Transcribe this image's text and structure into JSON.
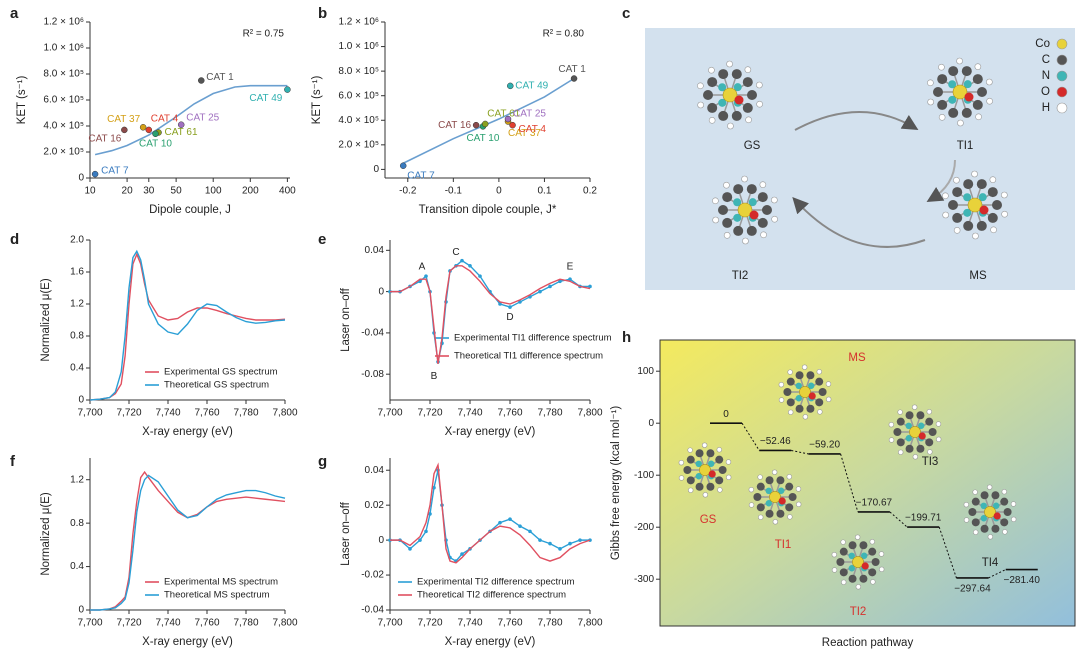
{
  "chart_data": [
    {
      "panel": "a",
      "type": "scatter",
      "xlabel": "Dipole couple, J",
      "ylabel": "KET (s⁻¹)",
      "annotation": "R² = 0.75",
      "xscale": "log",
      "xlim": [
        10,
        420
      ],
      "xticks": [
        10,
        20,
        30,
        50,
        100,
        200,
        400
      ],
      "ylim": [
        0,
        1200000
      ],
      "yticks": [
        0,
        {
          "value": 200000,
          "label": "2.0 × 10⁵"
        },
        {
          "value": 400000,
          "label": "4.0 × 10⁵"
        },
        {
          "value": 600000,
          "label": "6.0 × 10⁵"
        },
        {
          "value": 800000,
          "label": "8.0 × 10⁵"
        },
        {
          "value": 1000000,
          "label": "1.0 × 10⁶"
        },
        {
          "value": 1200000,
          "label": "1.2 × 10⁶"
        }
      ],
      "fit": {
        "color": "#6a9fd0",
        "x": [
          11,
          15,
          20,
          30,
          50,
          70,
          100,
          150,
          200,
          300,
          400
        ],
        "y": [
          180000,
          210000,
          250000,
          330000,
          470000,
          570000,
          650000,
          700000,
          710000,
          710000,
          710000
        ]
      },
      "points": [
        {
          "label": "CAT 7",
          "x": 11,
          "y": 30000,
          "color": "#3a7bbf"
        },
        {
          "label": "CAT 16",
          "x": 19,
          "y": 370000,
          "color": "#8b4a4a"
        },
        {
          "label": "CAT 37",
          "x": 27,
          "y": 390000,
          "color": "#d4a017"
        },
        {
          "label": "CAT 4",
          "x": 30,
          "y": 370000,
          "color": "#e04030"
        },
        {
          "label": "CAT 61",
          "x": 36,
          "y": 350000,
          "color": "#8aa020"
        },
        {
          "label": "CAT 10",
          "x": 34,
          "y": 340000,
          "color": "#2aa070"
        },
        {
          "label": "CAT 25",
          "x": 55,
          "y": 410000,
          "color": "#a070c0"
        },
        {
          "label": "CAT 1",
          "x": 80,
          "y": 750000,
          "color": "#555555"
        },
        {
          "label": "CAT 49",
          "x": 400,
          "y": 680000,
          "color": "#30b0b0"
        }
      ]
    },
    {
      "panel": "b",
      "type": "scatter",
      "xlabel": "Transition dipole couple, J*",
      "ylabel": "KET (s⁻¹)",
      "annotation": "R² = 0.80",
      "xlim": [
        -0.25,
        0.2
      ],
      "xticks": [
        -0.2,
        -0.1,
        0,
        0.1,
        0.2
      ],
      "ylim": [
        -70000,
        1200000
      ],
      "yticks": [
        0,
        {
          "value": 200000,
          "label": "2.0 × 10⁵"
        },
        {
          "value": 400000,
          "label": "4.0 × 10⁵"
        },
        {
          "value": 600000,
          "label": "6.0 × 10⁵"
        },
        {
          "value": 800000,
          "label": "8.0 × 10⁵"
        },
        {
          "value": 1000000,
          "label": "1.0 × 10⁶"
        },
        {
          "value": 1200000,
          "label": "1.2 × 10⁶"
        }
      ],
      "fit": {
        "color": "#6a9fd0",
        "x": [
          -0.21,
          -0.1,
          0,
          0.1,
          0.165
        ],
        "y": [
          50000,
          250000,
          410000,
          590000,
          740000
        ]
      },
      "points": [
        {
          "label": "CAT 7",
          "x": -0.21,
          "y": 30000,
          "color": "#3a7bbf"
        },
        {
          "label": "CAT 16",
          "x": -0.05,
          "y": 360000,
          "color": "#8b4a4a"
        },
        {
          "label": "CAT 10",
          "x": -0.035,
          "y": 350000,
          "color": "#2aa070"
        },
        {
          "label": "CAT 61",
          "x": -0.03,
          "y": 370000,
          "color": "#8aa020"
        },
        {
          "label": "CAT 37",
          "x": 0.02,
          "y": 390000,
          "color": "#d4a017"
        },
        {
          "label": "CAT 25",
          "x": 0.02,
          "y": 410000,
          "color": "#a070c0"
        },
        {
          "label": "CAT 4",
          "x": 0.03,
          "y": 360000,
          "color": "#e04030"
        },
        {
          "label": "CAT 49",
          "x": 0.025,
          "y": 680000,
          "color": "#30b0b0"
        },
        {
          "label": "CAT 1",
          "x": 0.165,
          "y": 740000,
          "color": "#555555"
        }
      ]
    },
    {
      "panel": "d",
      "type": "line",
      "xlabel": "X-ray energy (eV)",
      "ylabel": "Normalized μ(E)",
      "legend": "lower right",
      "xlim": [
        7700,
        7800
      ],
      "xticks": [
        {
          "value": 7700,
          "label": "7,700"
        },
        {
          "value": 7720,
          "label": "7,720"
        },
        {
          "value": 7740,
          "label": "7,740"
        },
        {
          "value": 7760,
          "label": "7,760"
        },
        {
          "value": 7780,
          "label": "7,780"
        },
        {
          "value": 7800,
          "label": "7,800"
        }
      ],
      "ylim": [
        0,
        2
      ],
      "yticks": [
        0,
        0.4,
        0.8,
        1.2,
        1.6,
        {
          "value": 2,
          "label": "2.0"
        }
      ],
      "x": [
        7700,
        7705,
        7710,
        7713,
        7716,
        7718,
        7720,
        7722,
        7724,
        7726,
        7728,
        7730,
        7735,
        7740,
        7745,
        7750,
        7755,
        7760,
        7765,
        7770,
        7775,
        7780,
        7785,
        7790,
        7795,
        7800
      ],
      "series": [
        {
          "name": "Experimental GS spectrum",
          "color": "#e05060",
          "values": [
            0,
            0.01,
            0.03,
            0.08,
            0.2,
            0.55,
            1.2,
            1.7,
            1.82,
            1.7,
            1.45,
            1.25,
            1.05,
            1.0,
            1.02,
            1.1,
            1.15,
            1.15,
            1.12,
            1.08,
            1.05,
            1.02,
            1.0,
            1.0,
            1.0,
            1.01
          ]
        },
        {
          "name": "Theoretical GS spectrum",
          "color": "#2a9fd6",
          "values": [
            0,
            0.01,
            0.03,
            0.1,
            0.35,
            0.8,
            1.4,
            1.78,
            1.86,
            1.75,
            1.5,
            1.2,
            0.95,
            0.85,
            0.82,
            0.95,
            1.12,
            1.2,
            1.18,
            1.1,
            1.03,
            0.98,
            0.96,
            0.97,
            0.99,
            1.0
          ]
        }
      ]
    },
    {
      "panel": "e",
      "type": "line",
      "xlabel": "X-ray energy (eV)",
      "ylabel": "Laser on–off",
      "legend": "center right",
      "xlim": [
        7700,
        7800
      ],
      "xticks": [
        {
          "value": 7700,
          "label": "7,700"
        },
        {
          "value": 7720,
          "label": "7,720"
        },
        {
          "value": 7740,
          "label": "7,740"
        },
        {
          "value": 7760,
          "label": "7,760"
        },
        {
          "value": 7780,
          "label": "7,780"
        },
        {
          "value": 7800,
          "label": "7,800"
        }
      ],
      "ylim": [
        -0.105,
        0.05
      ],
      "yticks": [
        -0.08,
        -0.04,
        0,
        0.04
      ],
      "x": [
        7700,
        7705,
        7710,
        7715,
        7718,
        7720,
        7722,
        7724,
        7726,
        7728,
        7730,
        7733,
        7736,
        7740,
        7745,
        7750,
        7755,
        7760,
        7765,
        7770,
        7775,
        7780,
        7785,
        7790,
        7795,
        7800
      ],
      "series": [
        {
          "name": "Experimental TI1 difference spectrum",
          "color": "#2a9fd6",
          "marker": true,
          "values": [
            0,
            0,
            0.005,
            0.01,
            0.015,
            0.0,
            -0.04,
            -0.068,
            -0.05,
            -0.01,
            0.02,
            0.025,
            0.03,
            0.025,
            0.015,
            0.0,
            -0.012,
            -0.015,
            -0.01,
            -0.005,
            0.0,
            0.005,
            0.01,
            0.012,
            0.005,
            0.005
          ]
        },
        {
          "name": "Theoretical TI1 difference spectrum",
          "color": "#e05060",
          "values": [
            0,
            0,
            0.005,
            0.012,
            0.012,
            0,
            -0.035,
            -0.07,
            -0.045,
            -0.005,
            0.02,
            0.025,
            0.025,
            0.02,
            0.01,
            -0.002,
            -0.01,
            -0.012,
            -0.008,
            -0.003,
            0.003,
            0.008,
            0.012,
            0.01,
            0.005,
            0.003
          ]
        }
      ],
      "annotations": [
        {
          "text": "A",
          "x": 7716,
          "y": 0.024
        },
        {
          "text": "B",
          "x": 7722,
          "y": -0.082
        },
        {
          "text": "C",
          "x": 7733,
          "y": 0.038
        },
        {
          "text": "D",
          "x": 7760,
          "y": -0.025
        },
        {
          "text": "E",
          "x": 7790,
          "y": 0.024
        }
      ]
    },
    {
      "panel": "f",
      "type": "line",
      "xlabel": "X-ray energy (eV)",
      "ylabel": "Normalized μ(E)",
      "legend": "lower right",
      "xlim": [
        7700,
        7800
      ],
      "xticks": [
        {
          "value": 7700,
          "label": "7,700"
        },
        {
          "value": 7720,
          "label": "7,720"
        },
        {
          "value": 7740,
          "label": "7,740"
        },
        {
          "value": 7760,
          "label": "7,760"
        },
        {
          "value": 7780,
          "label": "7,780"
        },
        {
          "value": 7800,
          "label": "7,800"
        }
      ],
      "ylim": [
        0,
        1.4
      ],
      "yticks": [
        0,
        0.4,
        0.8,
        1.2
      ],
      "x": [
        7700,
        7705,
        7710,
        7713,
        7716,
        7718,
        7720,
        7722,
        7724,
        7726,
        7728,
        7730,
        7735,
        7740,
        7745,
        7750,
        7755,
        7760,
        7765,
        7770,
        7775,
        7780,
        7785,
        7790,
        7795,
        7800
      ],
      "series": [
        {
          "name": "Experimental MS spectrum",
          "color": "#e05060",
          "values": [
            0,
            0,
            0.01,
            0.03,
            0.08,
            0.12,
            0.3,
            0.7,
            1.0,
            1.22,
            1.27,
            1.22,
            1.1,
            1.0,
            0.9,
            0.85,
            0.88,
            0.95,
            1.0,
            1.02,
            1.03,
            1.04,
            1.03,
            1.02,
            1.01,
            1.0
          ]
        },
        {
          "name": "Theoretical MS spectrum",
          "color": "#2a9fd6",
          "values": [
            0,
            0,
            0.01,
            0.02,
            0.06,
            0.1,
            0.25,
            0.55,
            0.9,
            1.1,
            1.2,
            1.24,
            1.18,
            1.05,
            0.92,
            0.85,
            0.87,
            0.95,
            1.02,
            1.06,
            1.08,
            1.1,
            1.1,
            1.08,
            1.05,
            1.03
          ]
        }
      ]
    },
    {
      "panel": "g",
      "type": "line",
      "xlabel": "X-ray energy (eV)",
      "ylabel": "Laser on–off",
      "legend": "lower center",
      "xlim": [
        7700,
        7800
      ],
      "xticks": [
        {
          "value": 7700,
          "label": "7,700"
        },
        {
          "value": 7720,
          "label": "7,720"
        },
        {
          "value": 7740,
          "label": "7,740"
        },
        {
          "value": 7760,
          "label": "7,760"
        },
        {
          "value": 7780,
          "label": "7,780"
        },
        {
          "value": 7800,
          "label": "7,800"
        }
      ],
      "ylim": [
        -0.04,
        0.047
      ],
      "yticks": [
        -0.04,
        -0.02,
        0,
        0.02,
        0.04
      ],
      "x": [
        7700,
        7705,
        7710,
        7715,
        7718,
        7720,
        7722,
        7724,
        7726,
        7728,
        7730,
        7733,
        7736,
        7740,
        7745,
        7750,
        7755,
        7760,
        7765,
        7770,
        7775,
        7780,
        7785,
        7790,
        7795,
        7800
      ],
      "series": [
        {
          "name": "Experimental TI2 difference spectrum",
          "color": "#2a9fd6",
          "marker": true,
          "values": [
            0,
            0,
            -0.005,
            0.0,
            0.005,
            0.015,
            0.03,
            0.04,
            0.02,
            0.0,
            -0.01,
            -0.012,
            -0.008,
            -0.005,
            0.0,
            0.005,
            0.01,
            0.012,
            0.008,
            0.005,
            0.0,
            -0.002,
            -0.005,
            -0.002,
            0.0,
            0.0
          ]
        },
        {
          "name": "Theoretical TI2 difference spectrum",
          "color": "#e05060",
          "values": [
            0,
            0,
            -0.003,
            0.002,
            0.01,
            0.02,
            0.038,
            0.043,
            0.02,
            -0.005,
            -0.012,
            -0.013,
            -0.01,
            -0.005,
            0.0,
            0.005,
            0.008,
            0.007,
            0.003,
            -0.003,
            -0.01,
            -0.012,
            -0.01,
            -0.005,
            -0.002,
            0.0
          ]
        }
      ]
    },
    {
      "panel": "h",
      "type": "energy",
      "xlabel": "Reaction pathway",
      "ylabel": "Gibbs free energy (kcal mol⁻¹)",
      "ylim": [
        -390,
        160
      ],
      "yticks": [
        100,
        0,
        -100,
        -200,
        -300
      ],
      "values": [
        0,
        -52.46,
        -59.2,
        -170.67,
        -199.71,
        -297.64,
        -281.4
      ],
      "value_labels": [
        "0",
        "−52.46",
        "−59.20",
        "−170.67",
        "−199.71",
        "−297.64",
        "−281.40"
      ],
      "structures": [
        {
          "label": "GS",
          "color": "#d6322e"
        },
        {
          "label": "MS",
          "color": "#d6322e"
        },
        {
          "label": "TI1",
          "color": "#d6322e"
        },
        {
          "label": "TI3",
          "color": "#222222"
        },
        {
          "label": "TI2",
          "color": "#d6322e"
        },
        {
          "label": "TI4",
          "color": "#222222"
        }
      ]
    }
  ],
  "diagram": {
    "panel": "c",
    "states": [
      "GS",
      "TI1",
      "TI2",
      "MS"
    ],
    "elements": [
      {
        "symbol": "Co",
        "color": "#e8d23a"
      },
      {
        "symbol": "C",
        "color": "#555555"
      },
      {
        "symbol": "N",
        "color": "#3fb5b5"
      },
      {
        "symbol": "O",
        "color": "#d42a2a"
      },
      {
        "symbol": "H",
        "color": "#ffffff"
      }
    ]
  }
}
